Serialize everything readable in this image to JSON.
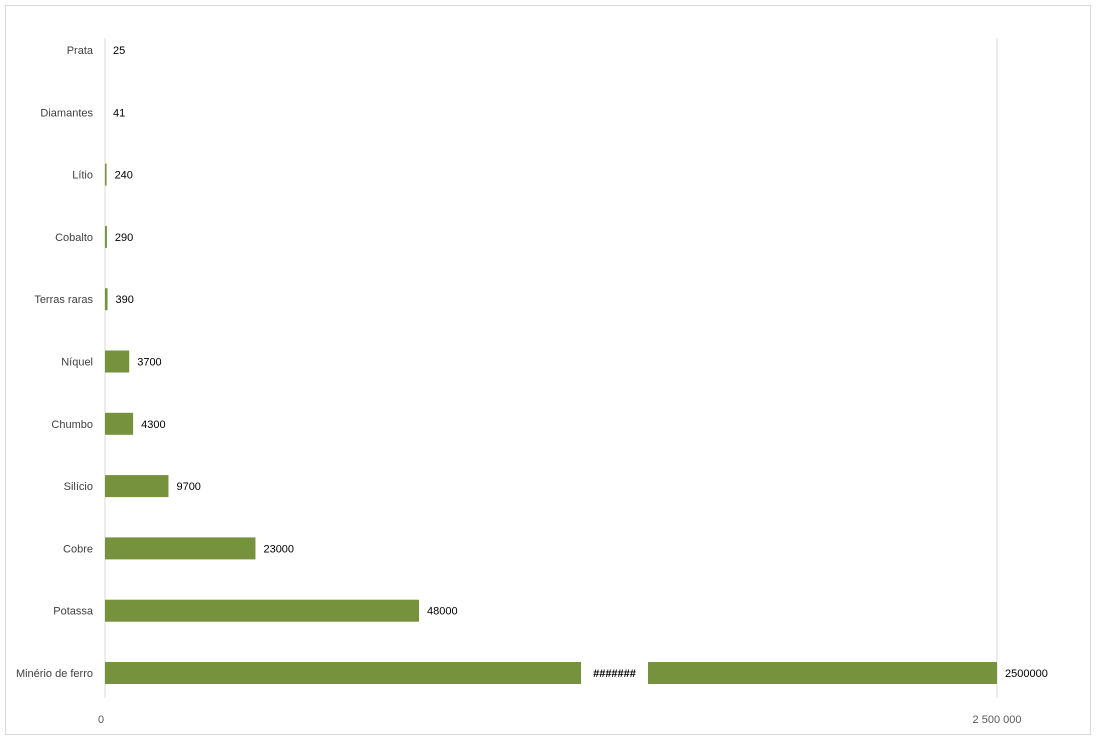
{
  "chart_data": {
    "type": "bar",
    "orientation": "horizontal",
    "categories": [
      "Prata",
      "Diamantes",
      "Lítio",
      "Cobalto",
      "Terras raras",
      "Níquel",
      "Chumbo",
      "Silício",
      "Cobre",
      "Potassa",
      "Minério de ferro"
    ],
    "values": [
      25,
      41,
      240,
      290,
      390,
      3700,
      4300,
      9700,
      23000,
      48000,
      2500000
    ],
    "value_labels": [
      "25",
      "41",
      "240",
      "290",
      "390",
      "3700",
      "4300",
      "9700",
      "23000",
      "48000",
      "2500000"
    ],
    "title": "",
    "xlabel": "",
    "ylabel": "",
    "xlim": [
      0,
      2500000
    ],
    "x_ticks": [
      "0",
      "2 500 000"
    ],
    "broken_bar": {
      "category": "Minério de ferro",
      "label": "#######"
    },
    "grid": false,
    "legend": "none",
    "bar_color": "#76923c"
  }
}
